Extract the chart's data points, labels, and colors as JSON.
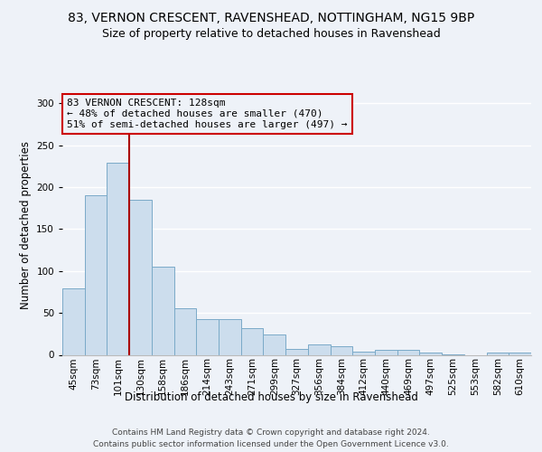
{
  "title_line1": "83, VERNON CRESCENT, RAVENSHEAD, NOTTINGHAM, NG15 9BP",
  "title_line2": "Size of property relative to detached houses in Ravenshead",
  "xlabel": "Distribution of detached houses by size in Ravenshead",
  "ylabel": "Number of detached properties",
  "footer_line1": "Contains HM Land Registry data © Crown copyright and database right 2024.",
  "footer_line2": "Contains public sector information licensed under the Open Government Licence v3.0.",
  "categories": [
    "45sqm",
    "73sqm",
    "101sqm",
    "130sqm",
    "158sqm",
    "186sqm",
    "214sqm",
    "243sqm",
    "271sqm",
    "299sqm",
    "327sqm",
    "356sqm",
    "384sqm",
    "412sqm",
    "440sqm",
    "469sqm",
    "497sqm",
    "525sqm",
    "553sqm",
    "582sqm",
    "610sqm"
  ],
  "values": [
    79,
    190,
    229,
    185,
    105,
    56,
    43,
    43,
    32,
    24,
    7,
    12,
    10,
    4,
    6,
    6,
    3,
    1,
    0,
    3,
    3
  ],
  "bar_color": "#ccdded",
  "bar_edge_color": "#7aaac8",
  "property_bin_index": 2,
  "vline_x": 2.5,
  "annotation_text": "83 VERNON CRESCENT: 128sqm\n← 48% of detached houses are smaller (470)\n51% of semi-detached houses are larger (497) →",
  "vline_color": "#aa0000",
  "annotation_box_edge_color": "#cc0000",
  "ylim": [
    0,
    310
  ],
  "yticks": [
    0,
    50,
    100,
    150,
    200,
    250,
    300
  ],
  "background_color": "#eef2f8",
  "grid_color": "#ffffff",
  "title_fontsize": 10,
  "subtitle_fontsize": 9,
  "axis_label_fontsize": 8.5,
  "tick_fontsize": 7.5,
  "annotation_fontsize": 8,
  "footer_fontsize": 6.5
}
